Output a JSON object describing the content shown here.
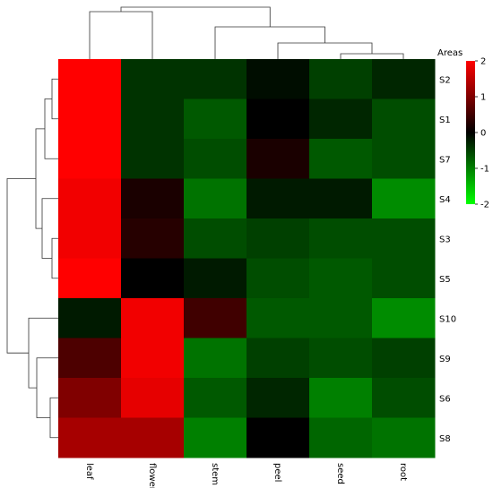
{
  "chart_data": {
    "type": "heatmap",
    "columns": [
      "leaf",
      "flower",
      "stem",
      "peel",
      "seed",
      "root"
    ],
    "rows": [
      "S2",
      "S1",
      "S7",
      "S4",
      "S3",
      "S5",
      "S10",
      "S9",
      "S6",
      "S8"
    ],
    "values": [
      [
        2.0,
        -0.4,
        -0.4,
        -0.1,
        -0.5,
        -0.3
      ],
      [
        2.0,
        -0.4,
        -0.7,
        0.0,
        -0.3,
        -0.6
      ],
      [
        2.0,
        -0.4,
        -0.6,
        0.2,
        -0.7,
        -0.6
      ],
      [
        1.9,
        0.2,
        -0.9,
        -0.2,
        -0.2,
        -1.1
      ],
      [
        1.9,
        0.3,
        -0.6,
        -0.5,
        -0.6,
        -0.6
      ],
      [
        2.0,
        0.0,
        -0.2,
        -0.6,
        -0.7,
        -0.6
      ],
      [
        -0.2,
        1.9,
        0.5,
        -0.7,
        -0.7,
        -1.1
      ],
      [
        0.6,
        1.9,
        -0.9,
        -0.5,
        -0.6,
        -0.5
      ],
      [
        1.0,
        1.8,
        -0.7,
        -0.3,
        -1.0,
        -0.6
      ],
      [
        1.3,
        1.3,
        -1.0,
        0.0,
        -0.8,
        -0.9
      ]
    ],
    "color_scale": {
      "title": "Areas",
      "ticks": [
        2,
        1,
        0,
        -1,
        -2
      ],
      "tick_labels": [
        "2",
        "1",
        "0",
        "-1",
        "-2"
      ],
      "range": [
        -2,
        2
      ],
      "high_color": "#ff0000",
      "mid_color": "#000000",
      "low_color": "#00ff00"
    },
    "row_dendrogram": true,
    "column_dendrogram": true,
    "grid": false
  }
}
